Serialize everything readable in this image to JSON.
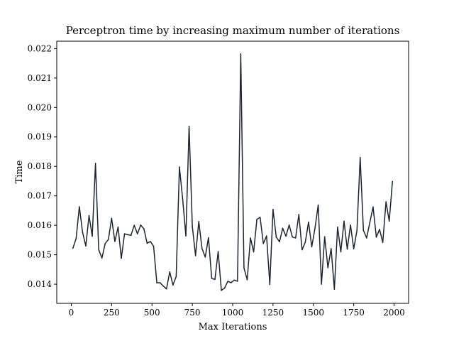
{
  "chart_data": {
    "type": "line",
    "title": "Perceptron time by increasing maximum number of iterations",
    "xlabel": "Max Iterations",
    "ylabel": "Time",
    "xlim": [
      -90,
      2090
    ],
    "ylim": [
      0.01335,
      0.02225
    ],
    "xticks": [
      0,
      250,
      500,
      750,
      1000,
      1250,
      1500,
      1750,
      2000
    ],
    "xtick_labels": [
      "0",
      "250",
      "500",
      "750",
      "1000",
      "1250",
      "1500",
      "1750",
      "2000"
    ],
    "yticks": [
      0.014,
      0.015,
      0.016,
      0.017,
      0.018,
      0.019,
      0.02,
      0.021,
      0.022
    ],
    "ytick_labels": [
      "0.014",
      "0.015",
      "0.016",
      "0.017",
      "0.018",
      "0.019",
      "0.020",
      "0.021",
      "0.022"
    ],
    "grid": false,
    "legend": "none",
    "line_color": "#1a2633",
    "series": [
      {
        "x": [
          10,
          30,
          50,
          70,
          90,
          110,
          130,
          150,
          170,
          190,
          210,
          230,
          250,
          270,
          290,
          310,
          330,
          350,
          370,
          390,
          410,
          430,
          450,
          470,
          490,
          510,
          530,
          550,
          570,
          590,
          610,
          630,
          650,
          670,
          690,
          710,
          730,
          750,
          770,
          790,
          810,
          830,
          850,
          870,
          890,
          910,
          930,
          950,
          970,
          990,
          1010,
          1030,
          1050,
          1070,
          1090,
          1110,
          1130,
          1150,
          1170,
          1190,
          1210,
          1230,
          1250,
          1270,
          1290,
          1310,
          1330,
          1350,
          1370,
          1390,
          1410,
          1430,
          1450,
          1470,
          1490,
          1510,
          1530,
          1550,
          1570,
          1590,
          1610,
          1630,
          1650,
          1670,
          1690,
          1710,
          1730,
          1750,
          1770,
          1790,
          1810,
          1830,
          1850,
          1870,
          1890,
          1910,
          1930,
          1950,
          1970,
          1990
        ],
        "values": [
          0.01522,
          0.01555,
          0.01663,
          0.01576,
          0.0153,
          0.01633,
          0.01563,
          0.0181,
          0.01517,
          0.01489,
          0.01538,
          0.01552,
          0.01624,
          0.01545,
          0.01594,
          0.01488,
          0.01571,
          0.01568,
          0.01566,
          0.016,
          0.01571,
          0.01601,
          0.01588,
          0.01539,
          0.01545,
          0.01529,
          0.01405,
          0.01405,
          0.01394,
          0.01384,
          0.01442,
          0.01397,
          0.01426,
          0.01798,
          0.0169,
          0.01564,
          0.01936,
          0.01596,
          0.01497,
          0.01613,
          0.01521,
          0.01492,
          0.01558,
          0.0142,
          0.01416,
          0.01511,
          0.01379,
          0.01387,
          0.0141,
          0.01405,
          0.01414,
          0.0141,
          0.02182,
          0.01455,
          0.01415,
          0.01557,
          0.0151,
          0.0162,
          0.01627,
          0.01538,
          0.01564,
          0.01399,
          0.01654,
          0.0156,
          0.01544,
          0.0159,
          0.01563,
          0.01601,
          0.0156,
          0.01557,
          0.01637,
          0.01517,
          0.01543,
          0.01611,
          0.01527,
          0.0159,
          0.01669,
          0.014,
          0.01561,
          0.01456,
          0.01521,
          0.01383,
          0.01594,
          0.0151,
          0.01614,
          0.01519,
          0.01601,
          0.0152,
          0.01582,
          0.0183,
          0.01583,
          0.01557,
          0.0161,
          0.01662,
          0.0156,
          0.01586,
          0.01542,
          0.0168,
          0.01614,
          0.01749
        ]
      }
    ]
  }
}
